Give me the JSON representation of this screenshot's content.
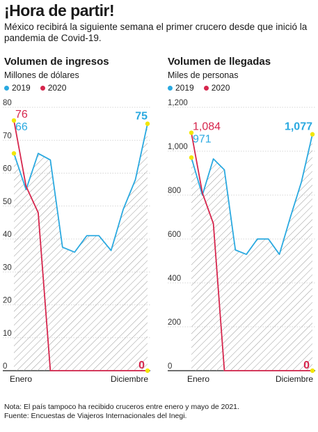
{
  "headline": "¡Hora de partir!",
  "dek": "México recibirá la siguiente semana el primer crucero desde que inició la pandemia de Covid-19.",
  "colors": {
    "s2019": "#2aa9e0",
    "s2020": "#d6264d",
    "marker": "#f2e600",
    "grid": "#c9c9c9",
    "hatch": "#9a9a9a"
  },
  "note": "Nota: El país tampoco ha recibido cruceros entre enero y mayo de 2021.",
  "source": "Fuente: Encuestas de Viajeros Internacionales del Inegi.",
  "chart_data": [
    {
      "type": "line",
      "title": "Volumen de ingresos",
      "subtitle": "Millones de dólares",
      "ylim": [
        0,
        80
      ],
      "yticks": [
        "0",
        "10",
        "20",
        "30",
        "40",
        "50",
        "60",
        "70",
        "80"
      ],
      "ytick_values": [
        0,
        10,
        20,
        30,
        40,
        50,
        60,
        70,
        80
      ],
      "x_start_label": "Enero",
      "x_end_label": "Diciembre",
      "legend": [
        "2019",
        "2020"
      ],
      "series": [
        {
          "name": "2019",
          "values": [
            66,
            55,
            66,
            64,
            37.5,
            36,
            41,
            41,
            36.5,
            49,
            58,
            75
          ]
        },
        {
          "name": "2020",
          "values": [
            76,
            56,
            48,
            0,
            0,
            0,
            0,
            0,
            0,
            0,
            0,
            0
          ]
        }
      ],
      "labels": {
        "start_2020": "76",
        "start_2019": "66",
        "end_2019": "75",
        "end_2020": "0"
      }
    },
    {
      "type": "line",
      "title": "Volumen de llegadas",
      "subtitle": "Miles de personas",
      "ylim": [
        0,
        1200
      ],
      "yticks": [
        "0",
        "200",
        "400",
        "600",
        "800",
        "1,000",
        "1,200"
      ],
      "ytick_values": [
        0,
        200,
        400,
        600,
        800,
        1000,
        1200
      ],
      "x_start_label": "Enero",
      "x_end_label": "Diciembre",
      "legend": [
        "2019",
        "2020"
      ],
      "series": [
        {
          "name": "2019",
          "values": [
            971,
            800,
            965,
            915,
            550,
            530,
            600,
            600,
            530,
            700,
            860,
            1077
          ]
        },
        {
          "name": "2020",
          "values": [
            1084,
            810,
            670,
            0,
            0,
            0,
            0,
            0,
            0,
            0,
            0,
            0
          ]
        }
      ],
      "labels": {
        "start_2020": "1,084",
        "start_2019": "971",
        "end_2019": "1,077",
        "end_2020": "0"
      }
    }
  ]
}
